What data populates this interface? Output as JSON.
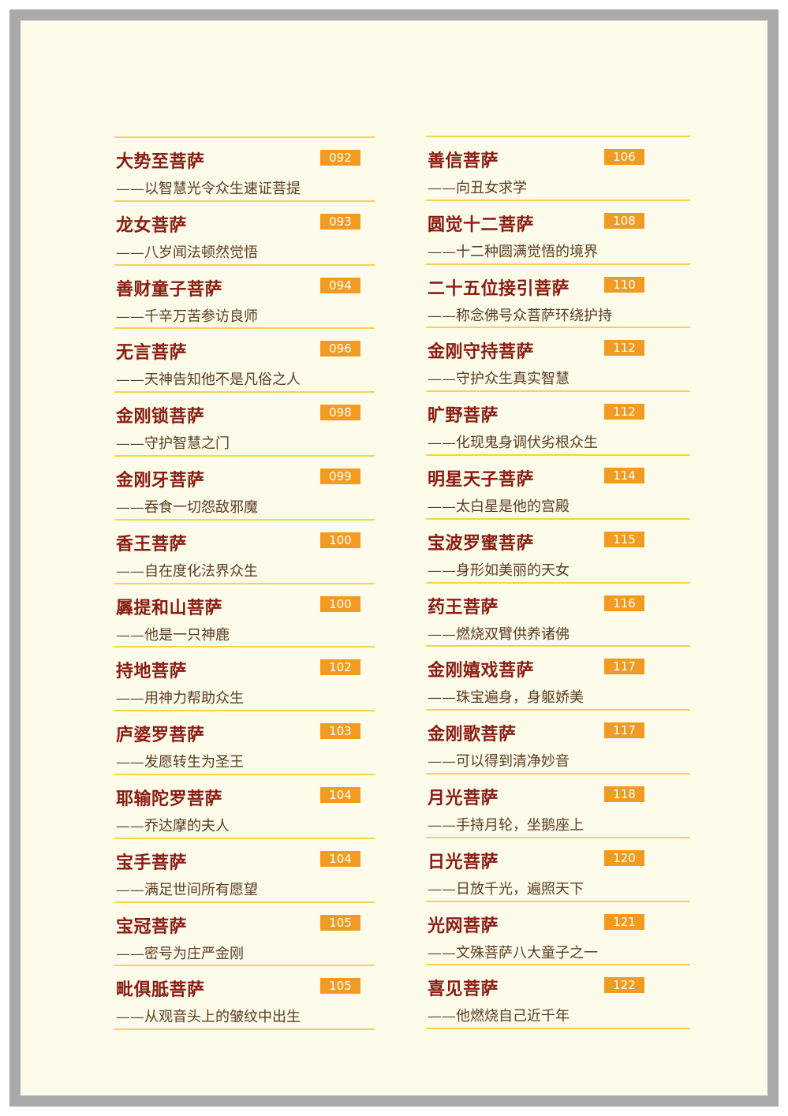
{
  "left_column": [
    {
      "title": "大势至菩萨",
      "subtitle": "——以智慧光令众生速证菩提",
      "page": "092"
    },
    {
      "title": "龙女菩萨",
      "subtitle": "——八岁闻法顿然觉悟",
      "page": "093"
    },
    {
      "title": "善财童子菩萨",
      "subtitle": "——千辛万苦参访良师",
      "page": "094"
    },
    {
      "title": "无言菩萨",
      "subtitle": "——天神告知他不是凡俗之人",
      "page": "096"
    },
    {
      "title": "金刚锁菩萨",
      "subtitle": "——守护智慧之门",
      "page": "098"
    },
    {
      "title": "金刚牙菩萨",
      "subtitle": "——吞食一切怨敌邪魔",
      "page": "099"
    },
    {
      "title": "香王菩萨",
      "subtitle": "——自在度化法界众生",
      "page": "100"
    },
    {
      "title": "羼提和山菩萨",
      "subtitle": "——他是一只神鹿",
      "page": "100"
    },
    {
      "title": "持地菩萨",
      "subtitle": "——用神力帮助众生",
      "page": "102"
    },
    {
      "title": "庐婆罗菩萨",
      "subtitle": "——发愿转生为圣王",
      "page": "103"
    },
    {
      "title": "耶输陀罗菩萨",
      "subtitle": "——乔达摩的夫人",
      "page": "104"
    },
    {
      "title": "宝手菩萨",
      "subtitle": "——满足世间所有愿望",
      "page": "104"
    },
    {
      "title": "宝冠菩萨",
      "subtitle": "——密号为庄严金刚",
      "page": "105"
    },
    {
      "title": "毗俱胝菩萨",
      "subtitle": "——从观音头上的皱纹中出生",
      "page": "105"
    }
  ],
  "right_column": [
    {
      "title": "善信菩萨",
      "subtitle": "——向丑女求学",
      "page": "106"
    },
    {
      "title": "圆觉十二菩萨",
      "subtitle": "——十二种圆满觉悟的境界",
      "page": "108"
    },
    {
      "title": "二十五位接引菩萨",
      "subtitle": "——称念佛号众菩萨环绕护持",
      "page": "110"
    },
    {
      "title": "金刚守持菩萨",
      "subtitle": "——守护众生真实智慧",
      "page": "112"
    },
    {
      "title": "旷野菩萨",
      "subtitle": "——化现鬼身调伏劣根众生",
      "page": "112"
    },
    {
      "title": "明星天子菩萨",
      "subtitle": "——太白星是他的宫殿",
      "page": "114"
    },
    {
      "title": "宝波罗蜜菩萨",
      "subtitle": "——身形如美丽的天女",
      "page": "115"
    },
    {
      "title": "药王菩萨",
      "subtitle": "——燃烧双臂供养诸佛",
      "page": "116"
    },
    {
      "title": "金刚嬉戏菩萨",
      "subtitle": "——珠宝遍身，身躯娇美",
      "page": "117"
    },
    {
      "title": "金刚歌菩萨",
      "subtitle": "——可以得到清净妙音",
      "page": "117"
    },
    {
      "title": "月光菩萨",
      "subtitle": "——手持月轮，坐鹅座上",
      "page": "118"
    },
    {
      "title": "日光菩萨",
      "subtitle": "——日放千光，遍照天下",
      "page": "120"
    },
    {
      "title": "光网菩萨",
      "subtitle": "——文殊菩萨八大童子之一",
      "page": "121"
    },
    {
      "title": "喜见菩萨",
      "subtitle": "——他燃烧自己近千年",
      "page": "122"
    }
  ]
}
